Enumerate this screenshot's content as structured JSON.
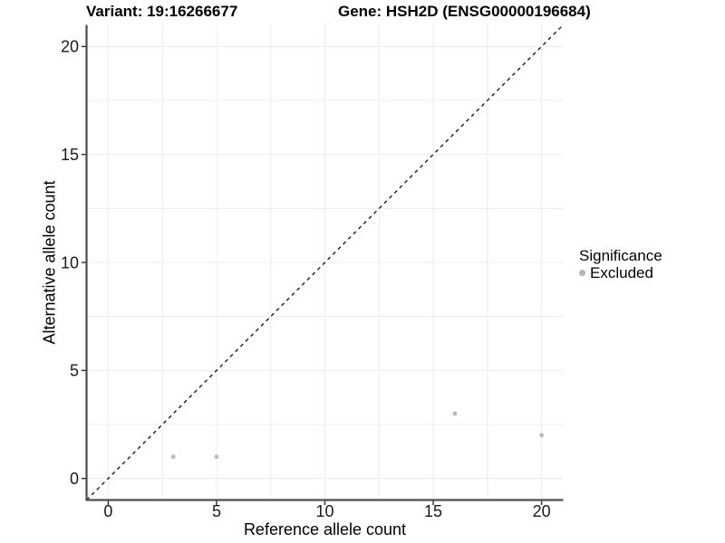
{
  "chart_data": {
    "type": "scatter",
    "title_left": "Variant: 19:16266677",
    "title_right": "Gene: HSH2D (ENSG00000196684)",
    "xlabel": "Reference allele count",
    "ylabel": "Alternative allele count",
    "xlim": [
      -1,
      21
    ],
    "ylim": [
      -1,
      21
    ],
    "xticks": [
      0,
      5,
      10,
      15,
      20
    ],
    "yticks": [
      0,
      5,
      10,
      15,
      20
    ],
    "xgrid": [
      0,
      2.5,
      5,
      7.5,
      10,
      12.5,
      15,
      17.5,
      20
    ],
    "ygrid": [
      0,
      2.5,
      5,
      7.5,
      10,
      12.5,
      15,
      17.5,
      20
    ],
    "grid": true,
    "series": [
      {
        "name": "Excluded",
        "color": "#bcbcbc",
        "points": [
          [
            3,
            1
          ],
          [
            5,
            1
          ],
          [
            16,
            3
          ],
          [
            20,
            2
          ]
        ]
      }
    ],
    "reference_line": {
      "style": "dashed",
      "from": [
        -1,
        -1
      ],
      "to": [
        21,
        21
      ],
      "color": "#1a1a1a"
    },
    "legend": {
      "title": "Significance",
      "position": "right",
      "items": [
        {
          "label": "Excluded",
          "color": "#b4b4b4"
        }
      ]
    }
  },
  "colors": {
    "background": "#ffffff",
    "grid": "#ececec",
    "axis_line": "#4d4d4d",
    "tick_mark": "#333333",
    "tick_label": "#1a1a1a",
    "point": "#bcbcbc",
    "reference_line": "#1a1a1a"
  }
}
